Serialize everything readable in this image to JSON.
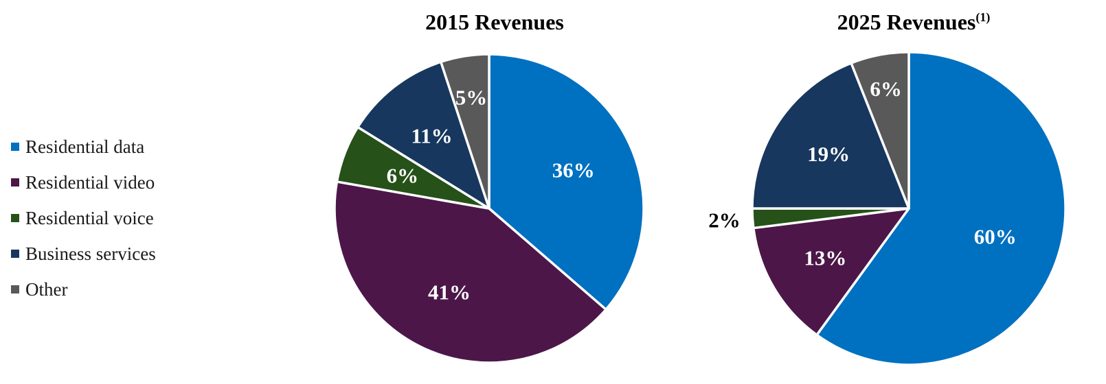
{
  "legend": [
    {
      "label": "Residential data",
      "color": "#0070C0"
    },
    {
      "label": "Residential video",
      "color": "#4C1748"
    },
    {
      "label": "Residential voice",
      "color": "#265118"
    },
    {
      "label": "Business services",
      "color": "#17375E"
    },
    {
      "label": "Other",
      "color": "#595959"
    }
  ],
  "chart_data": [
    {
      "type": "pie",
      "title": "2015 Revenues",
      "title_sup": "",
      "categories": [
        "Residential data",
        "Residential video",
        "Residential voice",
        "Business services",
        "Other"
      ],
      "values": [
        36,
        41,
        6,
        11,
        5
      ],
      "data_labels": [
        "36%",
        "41%",
        "6%",
        "11%",
        "5%"
      ],
      "colors": [
        "#0070C0",
        "#4C1748",
        "#265118",
        "#17375E",
        "#595959"
      ]
    },
    {
      "type": "pie",
      "title": "2025 Revenues",
      "title_sup": "(1)",
      "categories": [
        "Residential data",
        "Residential video",
        "Residential voice",
        "Business services",
        "Other"
      ],
      "values": [
        60,
        13,
        2,
        19,
        6
      ],
      "data_labels": [
        "60%",
        "13%",
        "2%",
        "19%",
        "6%"
      ],
      "colors": [
        "#0070C0",
        "#4C1748",
        "#265118",
        "#17375E",
        "#595959"
      ]
    }
  ]
}
